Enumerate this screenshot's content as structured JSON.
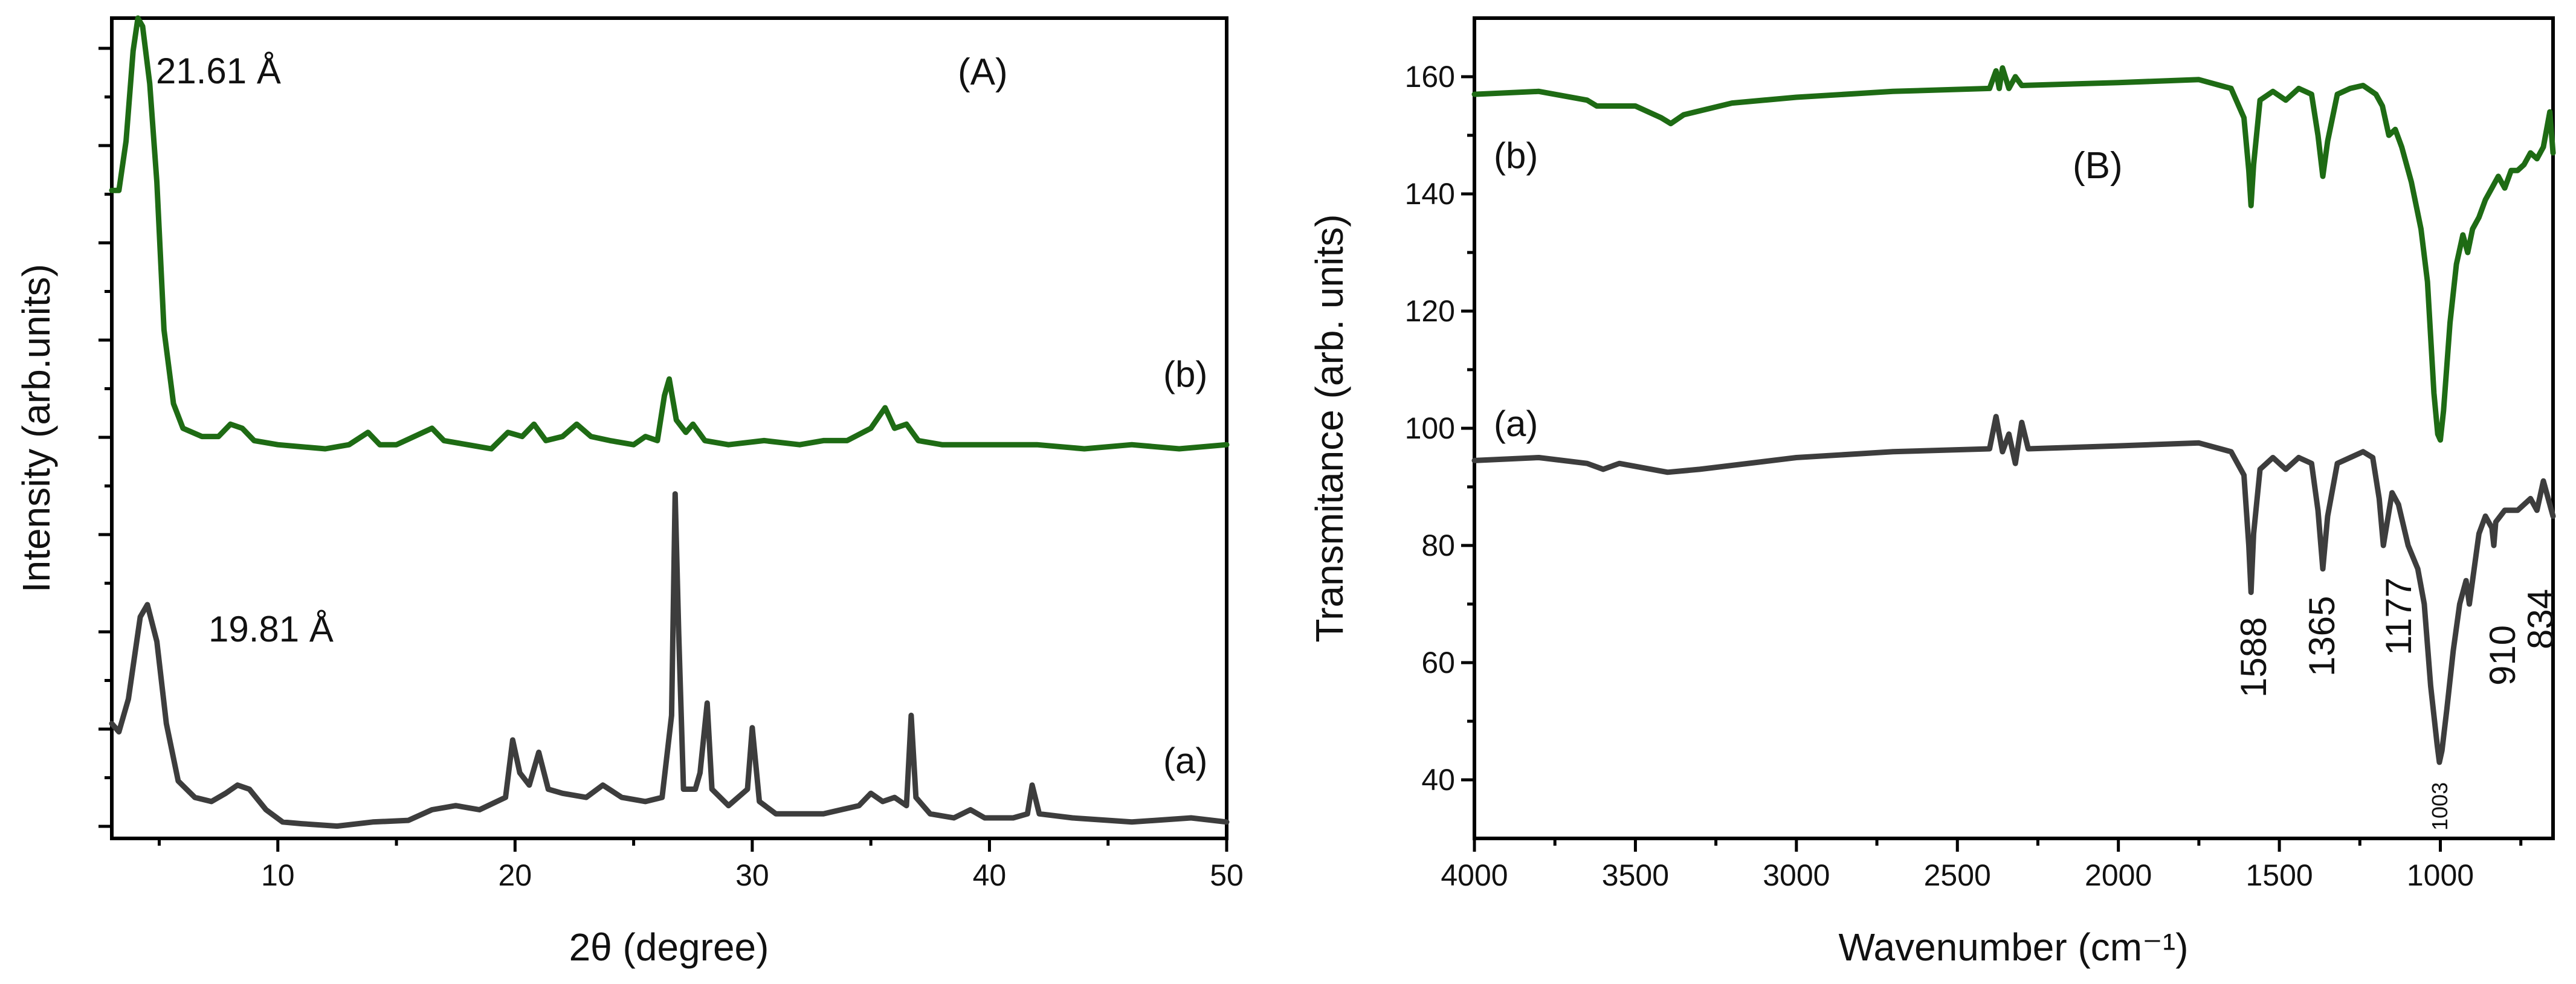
{
  "chart_data": [
    {
      "type": "line",
      "panel_label": "(A)",
      "xlabel": "2θ (degree)",
      "ylabel": "Intensity (arb.units)",
      "xlim": [
        3,
        50
      ],
      "ylim": [
        0,
        100
      ],
      "x_ticks": [
        10,
        20,
        30,
        40,
        50
      ],
      "y_tick_labels": "none",
      "colors": {
        "a": "#3d3d3d",
        "b": "#1e6b14"
      },
      "series": [
        {
          "name": "(a)",
          "curve_label": "(a)",
          "peak_label": "19.81 Å",
          "points": [
            [
              3,
              14
            ],
            [
              3.3,
              13
            ],
            [
              3.7,
              17
            ],
            [
              4.2,
              27
            ],
            [
              4.5,
              28.5
            ],
            [
              4.9,
              24
            ],
            [
              5.3,
              14
            ],
            [
              5.8,
              7
            ],
            [
              6.5,
              5
            ],
            [
              7.2,
              4.5
            ],
            [
              7.8,
              5.5
            ],
            [
              8.3,
              6.5
            ],
            [
              8.8,
              6
            ],
            [
              9.5,
              3.5
            ],
            [
              10.2,
              2
            ],
            [
              11,
              1.8
            ],
            [
              12.5,
              1.5
            ],
            [
              14,
              2
            ],
            [
              15.5,
              2.2
            ],
            [
              16.5,
              3.5
            ],
            [
              17.5,
              4
            ],
            [
              18.5,
              3.5
            ],
            [
              19.6,
              5
            ],
            [
              19.9,
              12
            ],
            [
              20.2,
              8
            ],
            [
              20.6,
              6.5
            ],
            [
              21,
              10.5
            ],
            [
              21.4,
              6
            ],
            [
              22,
              5.5
            ],
            [
              23,
              5
            ],
            [
              23.7,
              6.5
            ],
            [
              24.5,
              5
            ],
            [
              25.5,
              4.5
            ],
            [
              26.2,
              5
            ],
            [
              26.6,
              15
            ],
            [
              26.75,
              42
            ],
            [
              26.9,
              25
            ],
            [
              27.1,
              6
            ],
            [
              27.6,
              6
            ],
            [
              27.8,
              8
            ],
            [
              28.1,
              16.5
            ],
            [
              28.3,
              6
            ],
            [
              29,
              4
            ],
            [
              29.8,
              6
            ],
            [
              30,
              13.5
            ],
            [
              30.3,
              4.5
            ],
            [
              31,
              3
            ],
            [
              33,
              3
            ],
            [
              34.5,
              4
            ],
            [
              35,
              5.5
            ],
            [
              35.5,
              4.5
            ],
            [
              36,
              5
            ],
            [
              36.5,
              4
            ],
            [
              36.7,
              15
            ],
            [
              36.9,
              5
            ],
            [
              37.5,
              3
            ],
            [
              38.5,
              2.5
            ],
            [
              39.2,
              3.5
            ],
            [
              39.8,
              2.5
            ],
            [
              41,
              2.5
            ],
            [
              41.6,
              3
            ],
            [
              41.8,
              6.5
            ],
            [
              42.1,
              3
            ],
            [
              43.5,
              2.5
            ],
            [
              46,
              2
            ],
            [
              48.5,
              2.5
            ],
            [
              50,
              2
            ]
          ]
        },
        {
          "name": "(b)",
          "curve_label": "(b)",
          "peak_label": "21.61 Å",
          "points": [
            [
              3,
              79
            ],
            [
              3.3,
              79
            ],
            [
              3.6,
              85
            ],
            [
              3.9,
              96
            ],
            [
              4.1,
              100
            ],
            [
              4.3,
              99
            ],
            [
              4.6,
              92
            ],
            [
              4.9,
              80
            ],
            [
              5.2,
              62
            ],
            [
              5.6,
              53
            ],
            [
              6,
              50
            ],
            [
              6.8,
              49
            ],
            [
              7.5,
              49
            ],
            [
              8,
              50.5
            ],
            [
              8.5,
              50
            ],
            [
              9,
              48.5
            ],
            [
              10,
              48
            ],
            [
              12,
              47.5
            ],
            [
              13,
              48
            ],
            [
              13.8,
              49.5
            ],
            [
              14.3,
              48
            ],
            [
              15,
              48
            ],
            [
              16.5,
              50
            ],
            [
              17,
              48.5
            ],
            [
              18,
              48
            ],
            [
              19,
              47.5
            ],
            [
              19.7,
              49.5
            ],
            [
              20.3,
              49
            ],
            [
              20.8,
              50.5
            ],
            [
              21.3,
              48.5
            ],
            [
              22,
              49
            ],
            [
              22.6,
              50.5
            ],
            [
              23.2,
              49
            ],
            [
              24,
              48.5
            ],
            [
              25,
              48
            ],
            [
              25.5,
              49
            ],
            [
              26,
              48.5
            ],
            [
              26.3,
              54
            ],
            [
              26.5,
              56
            ],
            [
              26.8,
              51
            ],
            [
              27.2,
              49.5
            ],
            [
              27.5,
              50.5
            ],
            [
              28,
              48.5
            ],
            [
              29,
              48
            ],
            [
              30.5,
              48.5
            ],
            [
              32,
              48
            ],
            [
              33,
              48.5
            ],
            [
              34,
              48.5
            ],
            [
              35,
              50
            ],
            [
              35.6,
              52.5
            ],
            [
              36,
              50
            ],
            [
              36.5,
              50.5
            ],
            [
              37,
              48.5
            ],
            [
              38,
              48
            ],
            [
              40,
              48
            ],
            [
              42,
              48
            ],
            [
              44,
              47.5
            ],
            [
              46,
              48
            ],
            [
              48,
              47.5
            ],
            [
              50,
              48
            ]
          ]
        }
      ]
    },
    {
      "type": "line",
      "panel_label": "(B)",
      "xlabel": "Wavenumber (cm⁻¹)",
      "ylabel": "Transmitance (arb. units)",
      "xlim": [
        4000,
        650
      ],
      "ylim": [
        30,
        170
      ],
      "x_ticks": [
        4000,
        3500,
        3000,
        2500,
        2000,
        1500,
        1000
      ],
      "y_ticks": [
        40,
        60,
        80,
        100,
        120,
        140,
        160
      ],
      "colors": {
        "a": "#3d3d3d",
        "b": "#1e6b14"
      },
      "peak_annotations": [
        "1588",
        "1365",
        "1177",
        "910",
        "834",
        "1003"
      ],
      "series": [
        {
          "name": "(a)",
          "curve_label": "(a)",
          "points": [
            [
              4000,
              94.5
            ],
            [
              3800,
              95
            ],
            [
              3650,
              94
            ],
            [
              3600,
              93
            ],
            [
              3550,
              94
            ],
            [
              3400,
              92.5
            ],
            [
              3300,
              93
            ],
            [
              3000,
              95
            ],
            [
              2700,
              96
            ],
            [
              2400,
              96.5
            ],
            [
              2380,
              102
            ],
            [
              2360,
              96
            ],
            [
              2340,
              99
            ],
            [
              2320,
              94
            ],
            [
              2300,
              101
            ],
            [
              2280,
              96.5
            ],
            [
              2000,
              97
            ],
            [
              1750,
              97.5
            ],
            [
              1650,
              96
            ],
            [
              1610,
              92
            ],
            [
              1595,
              80
            ],
            [
              1588,
              72
            ],
            [
              1580,
              82
            ],
            [
              1560,
              93
            ],
            [
              1520,
              95
            ],
            [
              1480,
              93
            ],
            [
              1440,
              95
            ],
            [
              1400,
              94
            ],
            [
              1380,
              86
            ],
            [
              1365,
              76
            ],
            [
              1350,
              85
            ],
            [
              1320,
              94
            ],
            [
              1280,
              95
            ],
            [
              1240,
              96
            ],
            [
              1210,
              95
            ],
            [
              1190,
              88
            ],
            [
              1177,
              80
            ],
            [
              1165,
              84
            ],
            [
              1150,
              89
            ],
            [
              1130,
              87
            ],
            [
              1100,
              80
            ],
            [
              1070,
              76
            ],
            [
              1050,
              70
            ],
            [
              1030,
              56
            ],
            [
              1010,
              46
            ],
            [
              1003,
              43
            ],
            [
              995,
              45
            ],
            [
              980,
              52
            ],
            [
              960,
              62
            ],
            [
              940,
              70
            ],
            [
              920,
              74
            ],
            [
              910,
              70
            ],
            [
              900,
              74
            ],
            [
              880,
              82
            ],
            [
              860,
              85
            ],
            [
              840,
              83
            ],
            [
              834,
              80
            ],
            [
              828,
              84
            ],
            [
              800,
              86
            ],
            [
              760,
              86
            ],
            [
              720,
              88
            ],
            [
              700,
              86
            ],
            [
              680,
              91
            ],
            [
              650,
              85
            ]
          ]
        },
        {
          "name": "(b)",
          "curve_label": "(b)",
          "points": [
            [
              4000,
              157
            ],
            [
              3800,
              157.5
            ],
            [
              3650,
              156
            ],
            [
              3620,
              155
            ],
            [
              3500,
              155
            ],
            [
              3420,
              153
            ],
            [
              3390,
              152
            ],
            [
              3350,
              153.5
            ],
            [
              3200,
              155.5
            ],
            [
              3000,
              156.5
            ],
            [
              2700,
              157.5
            ],
            [
              2400,
              158
            ],
            [
              2380,
              161
            ],
            [
              2370,
              158
            ],
            [
              2360,
              161.5
            ],
            [
              2340,
              158
            ],
            [
              2320,
              160
            ],
            [
              2300,
              158.5
            ],
            [
              2000,
              159
            ],
            [
              1750,
              159.5
            ],
            [
              1650,
              158
            ],
            [
              1610,
              153
            ],
            [
              1595,
              144
            ],
            [
              1588,
              138
            ],
            [
              1580,
              145
            ],
            [
              1560,
              156
            ],
            [
              1520,
              157.5
            ],
            [
              1480,
              156
            ],
            [
              1440,
              158
            ],
            [
              1400,
              157
            ],
            [
              1380,
              150
            ],
            [
              1365,
              143
            ],
            [
              1350,
              149
            ],
            [
              1320,
              157
            ],
            [
              1280,
              158
            ],
            [
              1240,
              158.5
            ],
            [
              1200,
              157
            ],
            [
              1180,
              155
            ],
            [
              1160,
              150
            ],
            [
              1140,
              151
            ],
            [
              1120,
              148
            ],
            [
              1090,
              142
            ],
            [
              1060,
              134
            ],
            [
              1040,
              125
            ],
            [
              1020,
              106
            ],
            [
              1008,
              99
            ],
            [
              1000,
              98
            ],
            [
              990,
              103
            ],
            [
              970,
              118
            ],
            [
              950,
              128
            ],
            [
              930,
              133
            ],
            [
              915,
              130
            ],
            [
              900,
              134
            ],
            [
              880,
              136
            ],
            [
              860,
              139
            ],
            [
              840,
              141
            ],
            [
              820,
              143
            ],
            [
              800,
              141
            ],
            [
              780,
              144
            ],
            [
              760,
              144
            ],
            [
              740,
              145
            ],
            [
              720,
              147
            ],
            [
              700,
              146
            ],
            [
              680,
              148
            ],
            [
              660,
              154
            ],
            [
              650,
              147
            ]
          ]
        }
      ]
    }
  ]
}
